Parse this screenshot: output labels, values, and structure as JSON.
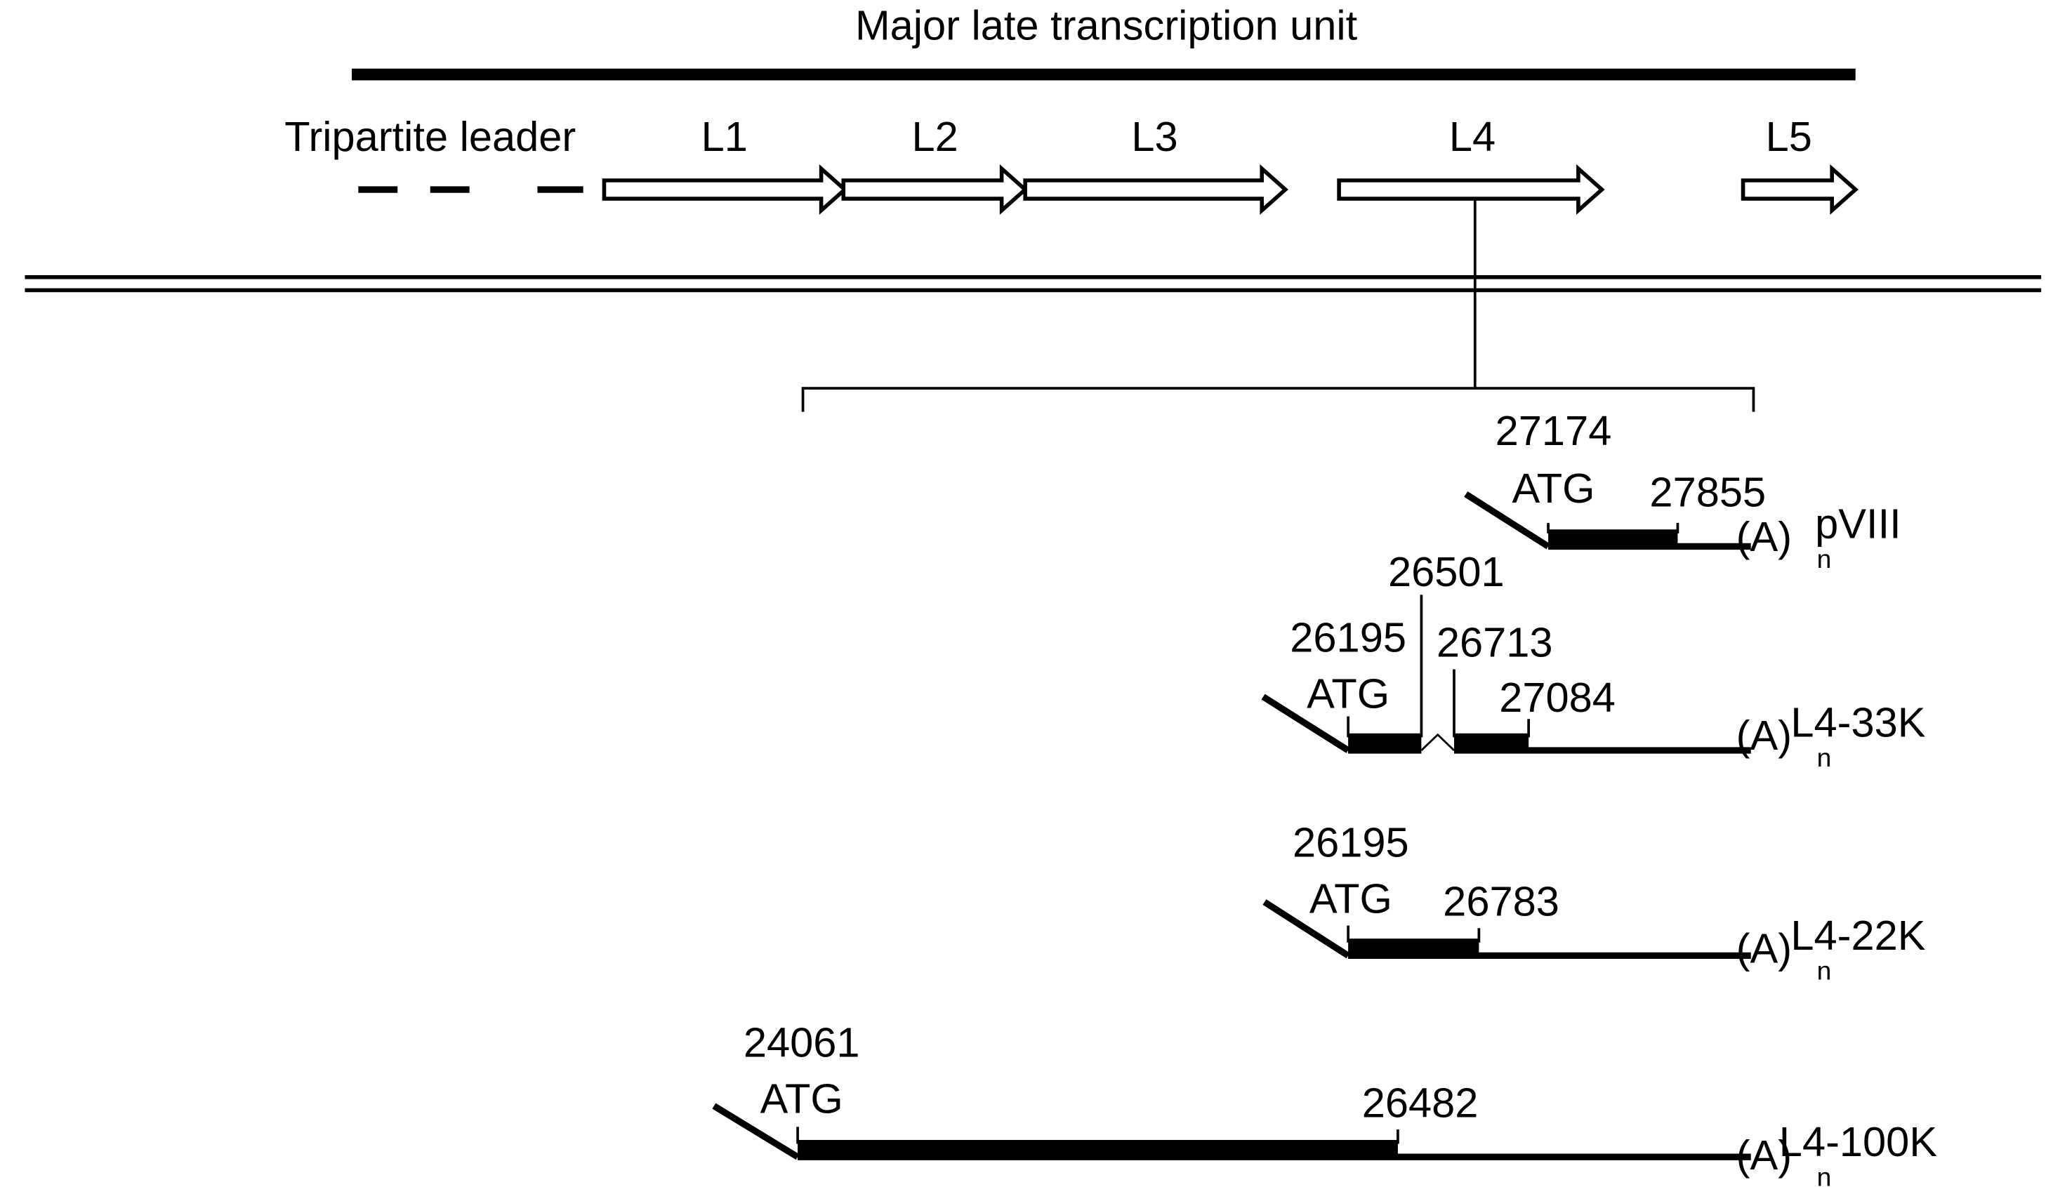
{
  "title": "Major late transcription unit",
  "leader": "Tripartite leader",
  "units": [
    "L1",
    "L2",
    "L3",
    "L4",
    "L5"
  ],
  "transcripts": [
    {
      "name": "pVIII",
      "start_codon": "ATG",
      "numbers": [
        27174,
        27855
      ],
      "polya": "(A)",
      "polya_subscript": "n"
    },
    {
      "name": "L4-33K",
      "start_codon": "ATG",
      "numbers": [
        26195,
        26501,
        26713,
        27084
      ],
      "polya": "(A)",
      "polya_subscript": "n"
    },
    {
      "name": "L4-22K",
      "start_codon": "ATG",
      "numbers": [
        26195,
        26783
      ],
      "polya": "(A)",
      "polya_subscript": "n"
    },
    {
      "name": "L4-100K",
      "start_codon": "ATG",
      "numbers": [
        24061,
        26482
      ],
      "polya": "(A)",
      "polya_subscript": "n"
    }
  ]
}
